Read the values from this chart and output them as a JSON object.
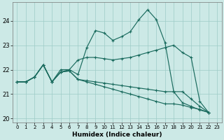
{
  "xlabel": "Humidex (Indice chaleur)",
  "background_color": "#cce9e6",
  "grid_color": "#9ecbc7",
  "line_color": "#1a6b5e",
  "xlim": [
    -0.5,
    23.5
  ],
  "ylim": [
    19.85,
    24.75
  ],
  "yticks": [
    20,
    21,
    22,
    23,
    24
  ],
  "xticks": [
    0,
    1,
    2,
    3,
    4,
    5,
    6,
    7,
    8,
    9,
    10,
    11,
    12,
    13,
    14,
    15,
    16,
    17,
    18,
    19,
    20,
    21,
    22,
    23
  ],
  "series": [
    {
      "x": [
        0,
        1,
        2,
        3,
        4,
        5,
        6,
        7,
        8,
        9,
        10,
        11,
        12,
        13,
        14,
        15,
        16,
        17,
        18,
        19,
        20,
        21,
        22
      ],
      "y": [
        21.5,
        21.5,
        21.7,
        22.2,
        21.5,
        22.0,
        22.0,
        21.8,
        22.9,
        23.6,
        23.5,
        23.2,
        23.35,
        23.55,
        24.05,
        24.45,
        24.05,
        23.1,
        21.1,
        20.65,
        20.5,
        20.35,
        20.25
      ]
    },
    {
      "x": [
        0,
        1,
        2,
        3,
        4,
        5,
        6,
        7,
        8,
        9,
        10,
        11,
        12,
        13,
        14,
        15,
        16,
        17,
        18,
        19,
        20,
        21,
        22
      ],
      "y": [
        21.5,
        21.5,
        21.7,
        22.2,
        21.5,
        21.9,
        22.0,
        22.4,
        22.5,
        22.5,
        22.45,
        22.4,
        22.45,
        22.5,
        22.6,
        22.7,
        22.8,
        22.9,
        23.0,
        22.7,
        22.5,
        20.7,
        20.25
      ]
    },
    {
      "x": [
        0,
        1,
        2,
        3,
        4,
        5,
        6,
        7,
        8,
        9,
        10,
        11,
        12,
        13,
        14,
        15,
        16,
        17,
        18,
        19,
        20,
        21,
        22
      ],
      "y": [
        21.5,
        21.5,
        21.7,
        22.2,
        21.5,
        21.9,
        21.95,
        21.6,
        21.55,
        21.5,
        21.45,
        21.4,
        21.35,
        21.3,
        21.25,
        21.2,
        21.15,
        21.1,
        21.1,
        21.1,
        20.8,
        20.5,
        20.25
      ]
    },
    {
      "x": [
        0,
        1,
        2,
        3,
        4,
        5,
        6,
        7,
        8,
        9,
        10,
        11,
        12,
        13,
        14,
        15,
        16,
        17,
        18,
        19,
        20,
        21,
        22
      ],
      "y": [
        21.5,
        21.5,
        21.7,
        22.2,
        21.5,
        21.9,
        21.95,
        21.6,
        21.5,
        21.4,
        21.3,
        21.2,
        21.1,
        21.0,
        20.9,
        20.8,
        20.7,
        20.6,
        20.6,
        20.55,
        20.45,
        20.38,
        20.25
      ]
    }
  ]
}
